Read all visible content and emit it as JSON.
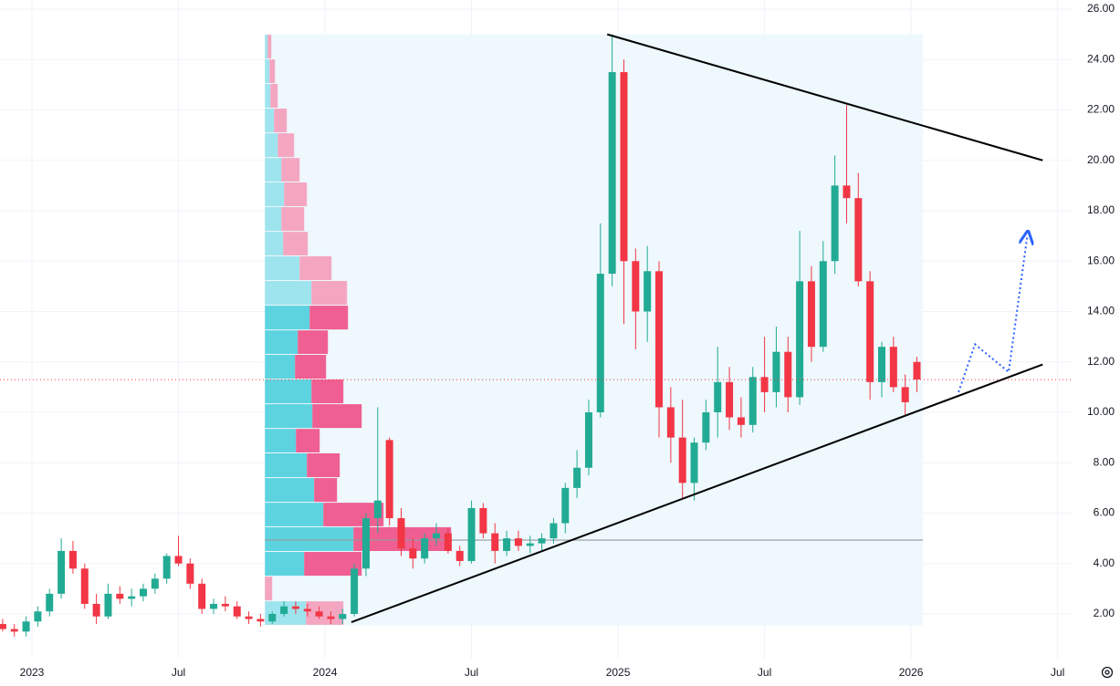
{
  "chart_data": {
    "type": "candlestick",
    "x": [
      2022.9,
      2022.94,
      2022.98,
      2023.02,
      2023.06,
      2023.1,
      2023.14,
      2023.18,
      2023.22,
      2023.26,
      2023.3,
      2023.34,
      2023.38,
      2023.42,
      2023.46,
      2023.5,
      2023.54,
      2023.58,
      2023.62,
      2023.66,
      2023.7,
      2023.74,
      2023.78,
      2023.82,
      2023.86,
      2023.9,
      2023.94,
      2023.98,
      2024.02,
      2024.06,
      2024.1,
      2024.14,
      2024.18,
      2024.22,
      2024.26,
      2024.3,
      2024.34,
      2024.38,
      2024.42,
      2024.46,
      2024.5,
      2024.54,
      2024.58,
      2024.62,
      2024.66,
      2024.7,
      2024.74,
      2024.78,
      2024.82,
      2024.86,
      2024.9,
      2024.94,
      2024.98,
      2025.02,
      2025.06,
      2025.1,
      2025.14,
      2025.18,
      2025.22,
      2025.26,
      2025.3,
      2025.34,
      2025.38,
      2025.42,
      2025.46,
      2025.5,
      2025.54,
      2025.58,
      2025.62,
      2025.66,
      2025.7,
      2025.74,
      2025.78,
      2025.82,
      2025.86,
      2025.9,
      2025.94,
      2025.98,
      2026.02
    ],
    "open": [
      1.6,
      1.4,
      1.3,
      1.7,
      2.1,
      2.8,
      4.5,
      3.8,
      2.4,
      1.9,
      2.8,
      2.6,
      2.7,
      3.0,
      3.4,
      4.3,
      4.0,
      3.2,
      2.2,
      2.4,
      2.3,
      1.9,
      1.8,
      1.7,
      2.0,
      2.3,
      2.2,
      2.1,
      1.9,
      1.8,
      2.0,
      3.8,
      5.8,
      8.9,
      5.8,
      4.6,
      4.2,
      5.0,
      5.2,
      4.5,
      4.1,
      6.2,
      5.2,
      4.5,
      5.0,
      4.7,
      4.8,
      5.0,
      5.6,
      7.0,
      7.8,
      10.0,
      15.5,
      23.5,
      16.0,
      14.0,
      15.6,
      10.2,
      9.0,
      7.2,
      8.8,
      10.0,
      11.2,
      9.8,
      9.5,
      11.4,
      10.8,
      12.4,
      10.6,
      15.2,
      12.6,
      16.0,
      19.0,
      18.5,
      15.2,
      11.2,
      12.6,
      11.0,
      12.0
    ],
    "high": [
      1.8,
      1.6,
      1.9,
      2.3,
      3.0,
      5.0,
      4.9,
      4.0,
      2.8,
      3.2,
      3.1,
      3.0,
      3.2,
      3.6,
      4.4,
      5.1,
      4.2,
      3.4,
      2.6,
      2.7,
      2.5,
      2.1,
      2.0,
      2.1,
      2.5,
      2.5,
      2.4,
      2.3,
      2.1,
      2.2,
      4.0,
      6.0,
      10.2,
      9.0,
      6.2,
      5.0,
      5.2,
      5.6,
      5.4,
      4.7,
      6.5,
      6.4,
      5.6,
      5.3,
      5.3,
      5.1,
      5.2,
      5.8,
      7.2,
      8.5,
      10.5,
      17.5,
      25.0,
      24.0,
      16.5,
      16.6,
      16.0,
      11.0,
      10.5,
      9.0,
      10.5,
      12.6,
      11.8,
      10.6,
      11.8,
      13.0,
      13.4,
      13.0,
      17.2,
      15.8,
      16.8,
      20.2,
      22.2,
      19.5,
      15.6,
      12.8,
      13.0,
      11.5,
      12.2
    ],
    "low": [
      1.3,
      1.1,
      1.1,
      1.5,
      1.9,
      2.6,
      3.6,
      2.2,
      1.6,
      1.8,
      2.4,
      2.3,
      2.5,
      2.8,
      3.2,
      3.9,
      3.0,
      2.0,
      2.0,
      2.1,
      1.8,
      1.6,
      1.5,
      1.6,
      1.9,
      2.0,
      1.9,
      1.8,
      1.6,
      1.6,
      1.9,
      3.5,
      5.2,
      5.5,
      4.3,
      3.8,
      4.0,
      4.7,
      4.4,
      3.9,
      4.0,
      5.0,
      4.0,
      4.3,
      4.5,
      4.4,
      4.5,
      4.8,
      5.2,
      6.6,
      7.5,
      9.8,
      15.0,
      13.5,
      12.5,
      12.8,
      9.0,
      8.0,
      6.6,
      6.5,
      8.5,
      9.0,
      9.3,
      9.0,
      9.2,
      10.0,
      10.2,
      10.0,
      10.3,
      12.0,
      12.4,
      15.5,
      17.5,
      15.0,
      10.5,
      10.6,
      10.8,
      9.9,
      10.8
    ],
    "close": [
      1.4,
      1.3,
      1.7,
      2.1,
      2.8,
      4.5,
      3.8,
      2.4,
      1.9,
      2.8,
      2.6,
      2.7,
      3.0,
      3.4,
      4.3,
      4.0,
      3.2,
      2.2,
      2.4,
      2.3,
      1.9,
      1.8,
      1.7,
      2.0,
      2.3,
      2.2,
      2.1,
      1.9,
      1.8,
      2.0,
      3.8,
      5.8,
      6.5,
      5.8,
      4.6,
      4.2,
      5.0,
      5.2,
      4.5,
      4.1,
      6.2,
      5.2,
      4.5,
      5.0,
      4.7,
      4.8,
      5.0,
      5.6,
      7.0,
      7.8,
      10.0,
      15.5,
      23.5,
      16.0,
      14.0,
      15.6,
      10.2,
      9.0,
      7.2,
      8.8,
      10.0,
      11.2,
      9.8,
      9.5,
      11.4,
      10.8,
      12.4,
      10.6,
      15.2,
      12.6,
      16.0,
      19.0,
      18.5,
      15.2,
      11.2,
      12.6,
      11.0,
      10.4,
      11.3
    ],
    "up_color": "#22ab94",
    "down_color": "#f23645",
    "xlim": [
      2022.891,
      2026.551
    ],
    "xticks": [
      2023,
      {
        "value": 2023.5,
        "label": "Jul"
      },
      2024,
      {
        "value": 2024.5,
        "label": "Jul"
      },
      2025,
      {
        "value": 2025.5,
        "label": "Jul"
      },
      2026,
      {
        "value": 2026.5,
        "label": "Jul"
      }
    ],
    "ylim": [
      0.9,
      26
    ],
    "yticks": [
      {
        "value": 26,
        "label": "26.00"
      },
      {
        "value": 24,
        "label": "24.00"
      },
      {
        "value": 22,
        "label": "22.00"
      },
      {
        "value": 20,
        "label": "20.00"
      },
      {
        "value": 18,
        "label": "18.00"
      },
      {
        "value": 16,
        "label": "16.00"
      },
      {
        "value": 14,
        "label": "14.00"
      },
      {
        "value": 12,
        "label": "12.00"
      },
      {
        "value": 10,
        "label": "10.00"
      },
      {
        "value": 8,
        "label": "8.00"
      },
      {
        "value": 6,
        "label": "6.00"
      },
      {
        "value": 4,
        "label": "4.00"
      },
      {
        "value": 2,
        "label": "2.00"
      }
    ],
    "grid": true,
    "profile": {
      "start": 2023.795,
      "end": 2026.04,
      "bins": [
        25.0,
        24.02,
        23.05,
        22.07,
        21.09,
        20.11,
        19.14,
        18.16,
        17.18,
        16.21,
        15.23,
        14.25,
        13.27,
        12.3,
        11.32,
        10.34,
        9.36,
        8.39,
        7.41,
        6.43,
        5.46,
        4.48,
        3.5,
        2.52,
        1.55
      ],
      "up_volume": [
        3,
        5,
        6,
        10,
        14,
        18,
        21,
        18,
        20,
        38,
        51,
        49,
        36,
        33,
        51,
        52,
        34,
        46,
        54,
        64,
        97,
        43,
        0,
        45
      ],
      "down_volume": [
        4,
        6,
        8,
        14,
        18,
        20,
        25,
        25,
        27,
        35,
        39,
        42,
        33,
        34,
        35,
        54,
        26,
        36,
        25,
        66,
        107,
        63,
        8,
        41
      ],
      "value_area": [
        3.5,
        14.25
      ],
      "poc": 4.93,
      "up_color": "#5dd3e0",
      "down_color": "#ef5f91",
      "up_light": "#9ee4ee",
      "down_light": "#f4a6c1",
      "fill": "#eef8fd"
    },
    "trendlines": [
      {
        "x": [
          2024.963,
          2026.449
        ],
        "y": [
          25.0,
          20.0
        ]
      },
      {
        "x": [
          2024.09,
          2026.449
        ],
        "y": [
          1.67,
          11.9
        ]
      }
    ],
    "projection": {
      "x": [
        2026.162,
        2026.218,
        2026.333,
        2026.396
      ],
      "y": [
        10.8,
        12.7,
        11.6,
        16.95
      ],
      "color": "#2962ff"
    },
    "last_price": 11.3
  }
}
